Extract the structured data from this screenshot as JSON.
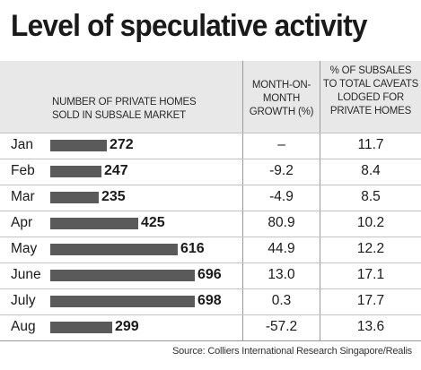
{
  "title": "Level of speculative activity",
  "headers": {
    "homes": [
      "NUMBER OF PRIVATE HOMES",
      "SOLD IN SUBSALE MARKET"
    ],
    "growth": [
      "MONTH-ON-",
      "MONTH",
      "GROWTH (%)"
    ],
    "pct": [
      "% OF SUBSALES",
      "TO TOTAL CAVEATS",
      "LODGED FOR",
      "PRIVATE HOMES"
    ]
  },
  "source": "Source: Colliers International Research Singapore/Realis",
  "chart_data": {
    "type": "bar",
    "orientation": "horizontal",
    "title": "Level of speculative activity",
    "categories": [
      "Jan",
      "Feb",
      "Mar",
      "Apr",
      "May",
      "June",
      "July",
      "Aug"
    ],
    "values": [
      272,
      247,
      235,
      425,
      616,
      696,
      698,
      299
    ],
    "growth": [
      "–",
      "-9.2",
      "-4.9",
      "80.9",
      "44.9",
      "13.0",
      "0.3",
      "-57.2"
    ],
    "pct_subsales": [
      "11.7",
      "8.4",
      "8.5",
      "10.2",
      "12.2",
      "17.1",
      "17.7",
      "13.6"
    ],
    "colors": {
      "bar": "#5a5a5a",
      "header_bg": "#e8e8e8"
    }
  }
}
